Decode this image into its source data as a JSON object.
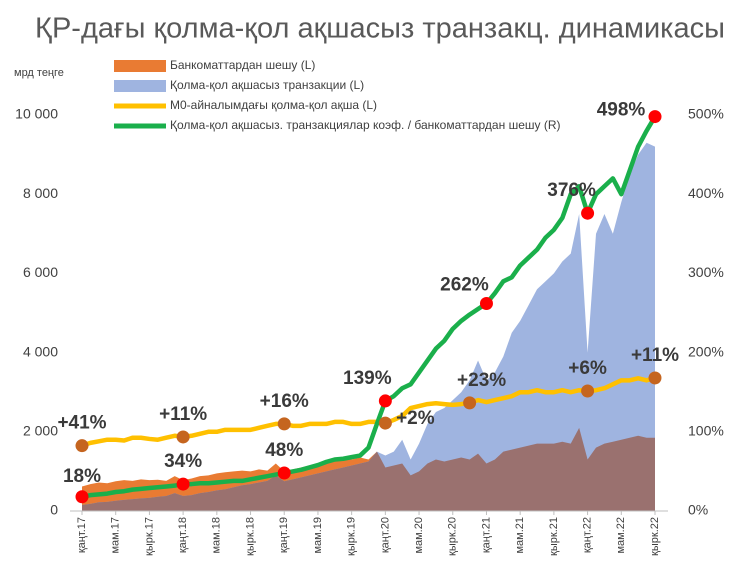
{
  "chart_data": {
    "type": "combo",
    "title": "ҚР-дағы қолма-қол ақшасыз транзакц. динамикасы",
    "y_label": "мрд теңге",
    "legend": "top-left",
    "categories": [
      "қаңт.17",
      null,
      null,
      null,
      "мам.17",
      null,
      null,
      null,
      "қырк.17",
      null,
      null,
      null,
      "қаңт.18",
      null,
      null,
      null,
      "мам.18",
      null,
      null,
      null,
      "қырк.18",
      null,
      null,
      null,
      "қаңт.19",
      null,
      null,
      null,
      "мам.19",
      null,
      null,
      null,
      "қырк.19",
      null,
      null,
      null,
      "қаңт.20",
      null,
      null,
      null,
      "мам.20",
      null,
      null,
      null,
      "қырк.20",
      null,
      null,
      null,
      "қаңт.21",
      null,
      null,
      null,
      "мам.21",
      null,
      null,
      null,
      "қырк.21",
      null,
      null,
      null,
      "қаңт.22",
      null,
      null,
      null,
      "мам.22",
      null,
      null,
      null,
      "қырк.22"
    ],
    "ylim": [
      0,
      10000
    ],
    "yticks": [
      0,
      {
        "value": 2000,
        "label": "2 000"
      },
      {
        "value": 4000,
        "label": "4 000"
      },
      {
        "value": 6000,
        "label": "6 000"
      },
      {
        "value": 8000,
        "label": "8 000"
      },
      {
        "value": 10000,
        "label": "10 000"
      }
    ],
    "y2lim": [
      0,
      500
    ],
    "y2ticks": [
      {
        "value": 0,
        "label": "0%"
      },
      {
        "value": 100,
        "label": "100%"
      },
      {
        "value": 200,
        "label": "200%"
      },
      {
        "value": 300,
        "label": "300%"
      },
      {
        "value": 400,
        "label": "400%"
      },
      {
        "value": 500,
        "label": "500%"
      }
    ],
    "series": [
      {
        "name": "Банкоматтардан шешу (L)",
        "type": "area",
        "color": "#e97b33",
        "values": [
          620,
          680,
          720,
          700,
          750,
          780,
          760,
          800,
          780,
          790,
          760,
          880,
          780,
          820,
          880,
          900,
          950,
          980,
          1000,
          1020,
          1000,
          1050,
          1020,
          1200,
          1000,
          1050,
          1100,
          1150,
          1200,
          1250,
          1300,
          1350,
          1300,
          1350,
          1300,
          1500,
          1100,
          1150,
          1200,
          900,
          1000,
          1200,
          1300,
          1250,
          1300,
          1350,
          1300,
          1450,
          1200,
          1300,
          1500,
          1550,
          1600,
          1650,
          1700,
          1700,
          1700,
          1750,
          1700,
          2100,
          1300,
          1600,
          1700,
          1750,
          1800,
          1850,
          1900,
          1850,
          1850
        ]
      },
      {
        "name": "Қолма-қол ақшасыз транзакции (L)",
        "type": "area",
        "color": "#9fb4e0",
        "values": [
          150,
          180,
          220,
          230,
          260,
          280,
          300,
          320,
          330,
          360,
          380,
          450,
          380,
          400,
          450,
          480,
          520,
          550,
          600,
          650,
          680,
          720,
          760,
          900,
          750,
          800,
          850,
          900,
          950,
          1000,
          1050,
          1100,
          1150,
          1200,
          1250,
          1500,
          1400,
          1500,
          1800,
          1300,
          1700,
          2200,
          2500,
          2600,
          2800,
          3000,
          3300,
          3800,
          3300,
          3500,
          3900,
          4500,
          4800,
          5200,
          5600,
          5800,
          6000,
          6300,
          6500,
          7500,
          4000,
          7000,
          7500,
          7000,
          7800,
          8500,
          9000,
          9300,
          9200
        ]
      },
      {
        "name": "М0-айналымдағы қолма-қол ақша (L)",
        "type": "line",
        "color": "#ffc000",
        "dot_color": "#c5651f",
        "values": [
          1650,
          1720,
          1760,
          1800,
          1800,
          1780,
          1850,
          1850,
          1820,
          1800,
          1850,
          1900,
          1870,
          1900,
          1950,
          2000,
          2000,
          2050,
          2050,
          2050,
          2050,
          2100,
          2150,
          2200,
          2200,
          2150,
          2150,
          2200,
          2200,
          2200,
          2250,
          2250,
          2200,
          2200,
          2250,
          2250,
          2220,
          2300,
          2400,
          2600,
          2650,
          2700,
          2720,
          2700,
          2680,
          2700,
          2730,
          2800,
          2750,
          2800,
          2850,
          2900,
          3000,
          3000,
          3050,
          3000,
          3000,
          3050,
          3000,
          3050,
          3030,
          3050,
          3100,
          3200,
          3300,
          3300,
          3350,
          3300,
          3360
        ],
        "annotations": [
          "+41%",
          null,
          null,
          null,
          null,
          null,
          null,
          null,
          null,
          null,
          null,
          null,
          "+11%",
          null,
          null,
          null,
          null,
          null,
          null,
          null,
          null,
          null,
          null,
          null,
          "+16%",
          null,
          null,
          null,
          null,
          null,
          null,
          null,
          null,
          null,
          null,
          null,
          "+2%",
          null,
          null,
          null,
          null,
          null,
          null,
          null,
          null,
          null,
          "+23%",
          null,
          null,
          null,
          null,
          null,
          null,
          null,
          null,
          null,
          null,
          null,
          null,
          null,
          "+6%",
          null,
          null,
          null,
          null,
          null,
          null,
          null,
          "+11%"
        ]
      },
      {
        "name": "Қолма-қол ақшасыз. транзакциялар коэф. / банкоматтардан шешу (R)",
        "type": "line",
        "axis": "y2",
        "color": "#1aaf4b",
        "dot_color": "#ff0000",
        "values": [
          18,
          20,
          21,
          22,
          24,
          25,
          27,
          28,
          29,
          30,
          31,
          32,
          34,
          34,
          35,
          35,
          36,
          37,
          38,
          38,
          40,
          42,
          44,
          46,
          48,
          50,
          52,
          55,
          58,
          62,
          65,
          66,
          68,
          70,
          80,
          110,
          139,
          145,
          155,
          160,
          175,
          190,
          205,
          215,
          230,
          240,
          248,
          255,
          262,
          275,
          290,
          295,
          310,
          320,
          330,
          345,
          355,
          370,
          400,
          410,
          376,
          400,
          410,
          420,
          400,
          430,
          460,
          480,
          498
        ],
        "value_labels": [
          "18%",
          null,
          null,
          null,
          null,
          null,
          null,
          null,
          null,
          null,
          null,
          null,
          "34%",
          null,
          null,
          null,
          null,
          null,
          null,
          null,
          null,
          null,
          null,
          null,
          "48%",
          null,
          null,
          null,
          null,
          null,
          null,
          null,
          null,
          null,
          null,
          null,
          "139%",
          null,
          null,
          null,
          null,
          null,
          null,
          null,
          null,
          null,
          null,
          null,
          "262%",
          null,
          null,
          null,
          null,
          null,
          null,
          null,
          null,
          null,
          null,
          null,
          "376%",
          null,
          null,
          null,
          null,
          null,
          null,
          null,
          "498%"
        ]
      }
    ]
  }
}
